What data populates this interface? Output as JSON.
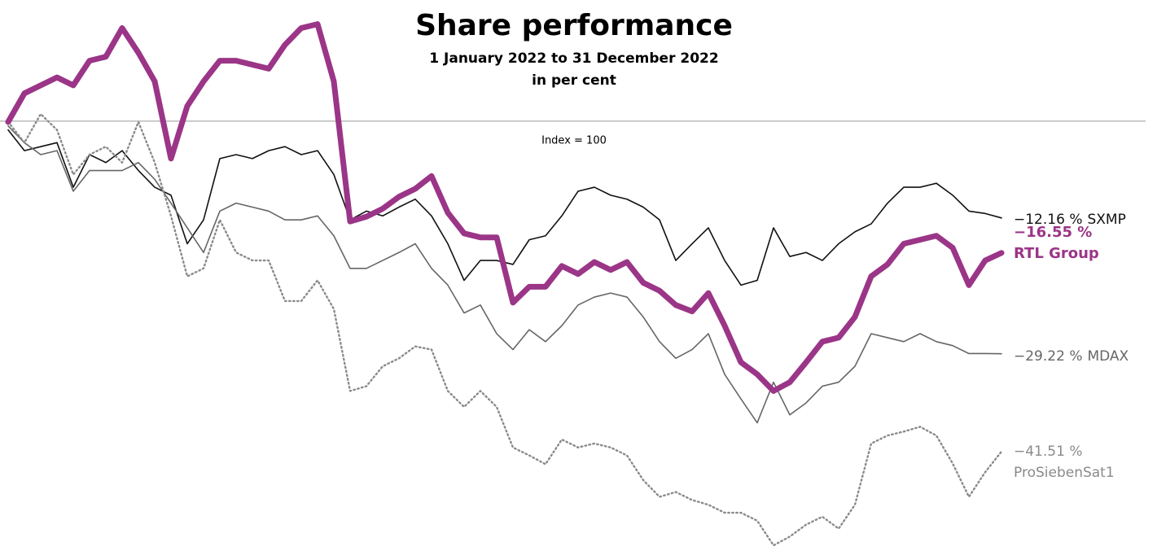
{
  "chart_data": {
    "type": "line",
    "title": "Share performance",
    "subtitle": "1 January 2022 to 31 December 2022",
    "unit_note": "in per cent",
    "reference": {
      "value": 100,
      "label": "Index = 100"
    },
    "ylim": [
      46,
      114
    ],
    "series": [
      {
        "name": "SXMP",
        "change_label": "−12.16 %",
        "color": "#111111",
        "width": 1.6,
        "style": "solid",
        "values": [
          98.9,
          96.3,
          96.8,
          97.3,
          91.7,
          95.8,
          94.8,
          96.3,
          93.8,
          91.7,
          90.7,
          84.6,
          87.6,
          95.3,
          95.8,
          95.3,
          96.3,
          96.8,
          95.8,
          96.3,
          93.3,
          87.6,
          88.7,
          88.1,
          89.2,
          90.2,
          88.1,
          84.6,
          80.0,
          82.5,
          82.5,
          82.0,
          85.1,
          85.6,
          88.1,
          91.2,
          91.7,
          90.7,
          90.2,
          89.2,
          87.6,
          82.5,
          84.6,
          86.6,
          82.5,
          79.4,
          80.0,
          86.6,
          83.0,
          83.5,
          82.5,
          84.6,
          86.1,
          87.1,
          89.7,
          91.7,
          91.7,
          92.2,
          90.7,
          88.7,
          88.4,
          87.84
        ]
      },
      {
        "name": "MDAX",
        "change_label": "−29.22 %",
        "color": "#666666",
        "width": 1.6,
        "style": "solid",
        "values": [
          99.4,
          97.3,
          95.8,
          96.3,
          91.2,
          93.8,
          93.8,
          93.8,
          94.8,
          92.7,
          89.7,
          86.6,
          83.5,
          88.7,
          89.7,
          89.2,
          88.7,
          87.6,
          87.6,
          88.1,
          85.6,
          81.5,
          81.5,
          82.5,
          83.5,
          84.6,
          81.5,
          79.4,
          75.9,
          76.9,
          73.3,
          71.3,
          73.8,
          72.3,
          74.3,
          76.9,
          77.9,
          78.4,
          77.9,
          75.4,
          72.3,
          70.2,
          71.3,
          73.3,
          68.2,
          65.1,
          62.1,
          67.2,
          63.1,
          64.6,
          66.7,
          67.2,
          69.2,
          73.3,
          72.8,
          72.3,
          73.3,
          72.3,
          71.8,
          70.8,
          70.8,
          70.78
        ]
      },
      {
        "name": "ProSiebenSat1",
        "change_label": "−41.51 %",
        "color": "#8a8a8a",
        "width": 2.4,
        "style": "dotted",
        "values": [
          99.9,
          97.3,
          100.9,
          98.9,
          93.3,
          95.8,
          96.8,
          94.8,
          99.9,
          94.8,
          88.1,
          80.5,
          81.5,
          87.6,
          83.5,
          82.5,
          82.5,
          77.4,
          77.4,
          80.0,
          76.4,
          66.1,
          66.7,
          69.2,
          70.2,
          71.7,
          71.3,
          66.1,
          64.1,
          66.1,
          64.1,
          59.0,
          58.0,
          56.9,
          60.0,
          59.0,
          59.5,
          59.0,
          58.0,
          54.9,
          52.8,
          53.4,
          52.4,
          51.8,
          50.8,
          50.8,
          49.8,
          46.7,
          47.8,
          49.3,
          50.3,
          48.8,
          51.8,
          59.5,
          60.5,
          61.0,
          61.6,
          60.5,
          57.0,
          52.8,
          55.9,
          58.49
        ]
      },
      {
        "name": "RTL Group",
        "change_label": "−16.55 %",
        "color": "#9b3587",
        "width": 7,
        "style": "solid",
        "values": [
          99.9,
          103.5,
          104.5,
          105.5,
          104.5,
          107.6,
          108.1,
          111.7,
          108.6,
          105.0,
          95.3,
          101.9,
          105.0,
          107.6,
          107.6,
          107.1,
          106.6,
          109.6,
          111.7,
          112.2,
          105.0,
          87.4,
          88.0,
          89.0,
          90.5,
          91.5,
          93.1,
          88.5,
          85.9,
          85.4,
          85.4,
          77.2,
          79.2,
          79.2,
          81.8,
          80.8,
          82.3,
          81.3,
          82.3,
          79.7,
          78.7,
          76.9,
          76.1,
          78.4,
          74.3,
          69.7,
          68.2,
          66.1,
          67.2,
          69.7,
          72.3,
          72.8,
          75.4,
          80.5,
          82.0,
          84.6,
          85.1,
          85.6,
          84.1,
          79.4,
          82.5,
          83.45
        ]
      }
    ]
  }
}
